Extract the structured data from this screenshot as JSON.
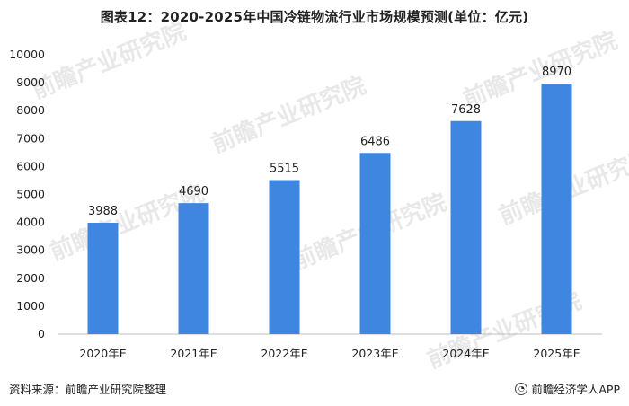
{
  "header": {
    "title": "图表12：2020-2025年中国冷链物流行业市场规模预测(单位：亿元)"
  },
  "chart_data": {
    "type": "bar",
    "title": "图表12：2020-2025年中国冷链物流行业市场规模预测(单位：亿元)",
    "categories": [
      "2020年E",
      "2021年E",
      "2022年E",
      "2023年E",
      "2024年E",
      "2025年E"
    ],
    "values": [
      3988,
      4690,
      5515,
      6486,
      7628,
      8970
    ],
    "ylim": [
      0,
      10000
    ],
    "yticks": [
      0,
      1000,
      2000,
      3000,
      4000,
      5000,
      6000,
      7000,
      8000,
      9000,
      10000
    ],
    "bar_color": "#3f86e0",
    "grid": false,
    "legend": "none"
  },
  "watermark": {
    "text": "前瞻产业研究院"
  },
  "footer": {
    "source": "资料来源：前瞻产业研究院整理",
    "app": "前瞻经济学人APP",
    "app_icon": "wechat-icon"
  }
}
